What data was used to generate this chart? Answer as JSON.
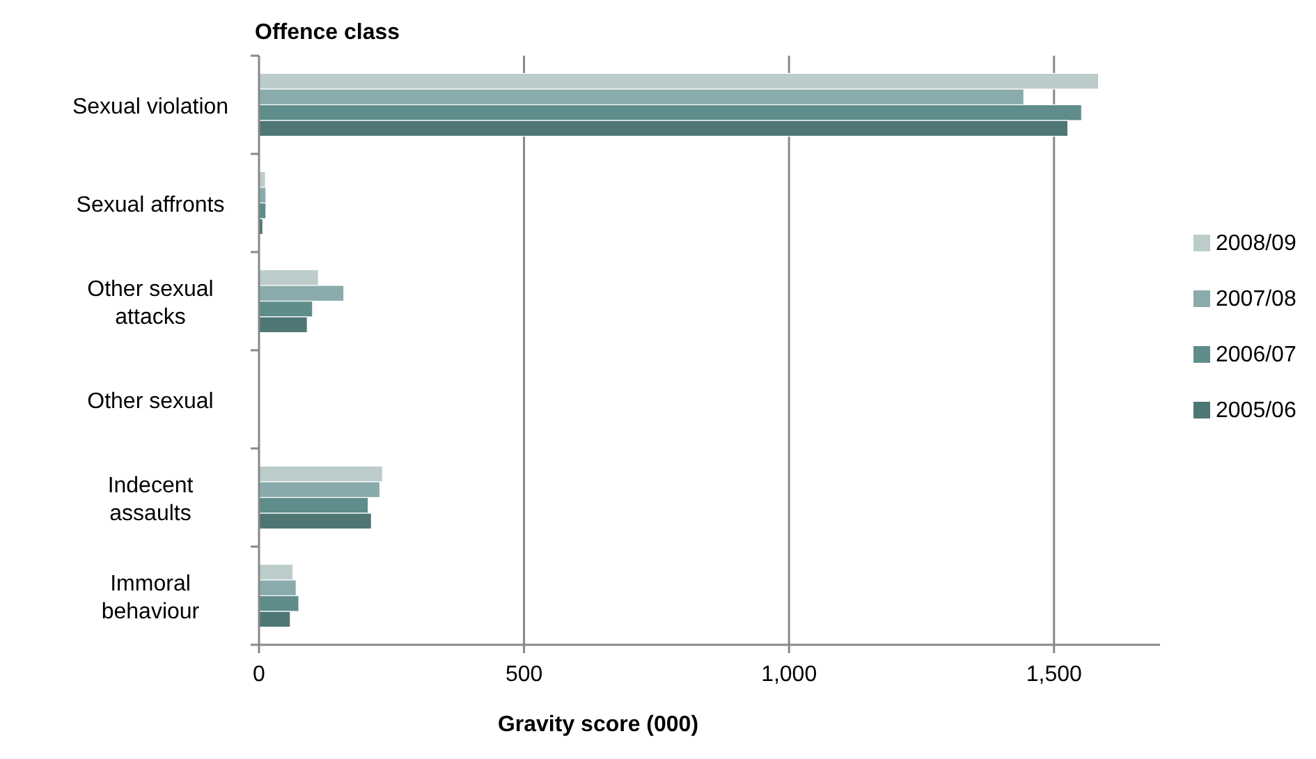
{
  "chart_data": {
    "type": "bar",
    "orientation": "horizontal",
    "ylabel": "Offence class",
    "xlabel": "Gravity score (000)",
    "categories": [
      "Sexual violation",
      "Sexual affronts",
      "Other sexual attacks",
      "Other sexual",
      "Indecent assaults",
      "Immoral behaviour"
    ],
    "series": [
      {
        "name": "2008/09",
        "color": "#bccccb",
        "values": [
          1584,
          12,
          112,
          1,
          233,
          64
        ]
      },
      {
        "name": "2007/08",
        "color": "#8aabab",
        "values": [
          1443,
          13,
          160,
          1,
          228,
          70
        ]
      },
      {
        "name": "2006/07",
        "color": "#5e8d8b",
        "values": [
          1552,
          13,
          101,
          1,
          206,
          75
        ]
      },
      {
        "name": "2005/06",
        "color": "#4e7674",
        "values": [
          1526,
          7,
          91,
          1,
          212,
          59
        ]
      }
    ],
    "xlim": [
      0,
      1700
    ],
    "xticks": [
      0,
      500,
      {
        "value": 1000,
        "label": "1,000"
      },
      {
        "value": 1500,
        "label": "1,500"
      }
    ],
    "grid": "x",
    "legend": "right"
  }
}
